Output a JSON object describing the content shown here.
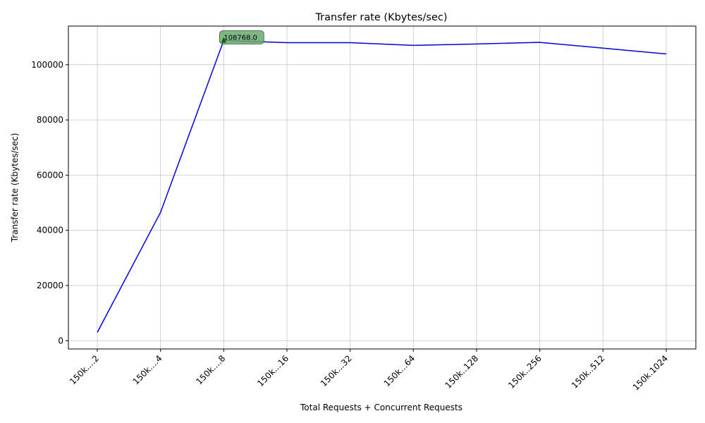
{
  "chart_data": {
    "type": "line",
    "title": "Transfer rate (Kbytes/sec)",
    "xlabel": "Total Requests + Concurrent Requests",
    "ylabel": "Transfer rate (Kbytes/sec)",
    "categories": [
      "150k....2",
      "150k....4",
      "150k....8",
      "150k...16",
      "150k...32",
      "150k...64",
      "150k..128",
      "150k..256",
      "150k..512",
      "150k.1024"
    ],
    "series": [
      {
        "values": [
          3000,
          46500,
          108768.0,
          108000,
          108000,
          107000,
          107500,
          108100,
          106000,
          103900
        ]
      }
    ],
    "yticks": [
      0,
      20000,
      40000,
      60000,
      80000,
      100000
    ],
    "ylim": [
      -3000,
      114000
    ],
    "grid": true,
    "line_color": "#0000dd",
    "annotation": {
      "category": "150k....8",
      "value": 108768.0,
      "text": "108768.0",
      "box_color": "#6aa96f",
      "marker_color": "#006400"
    }
  }
}
